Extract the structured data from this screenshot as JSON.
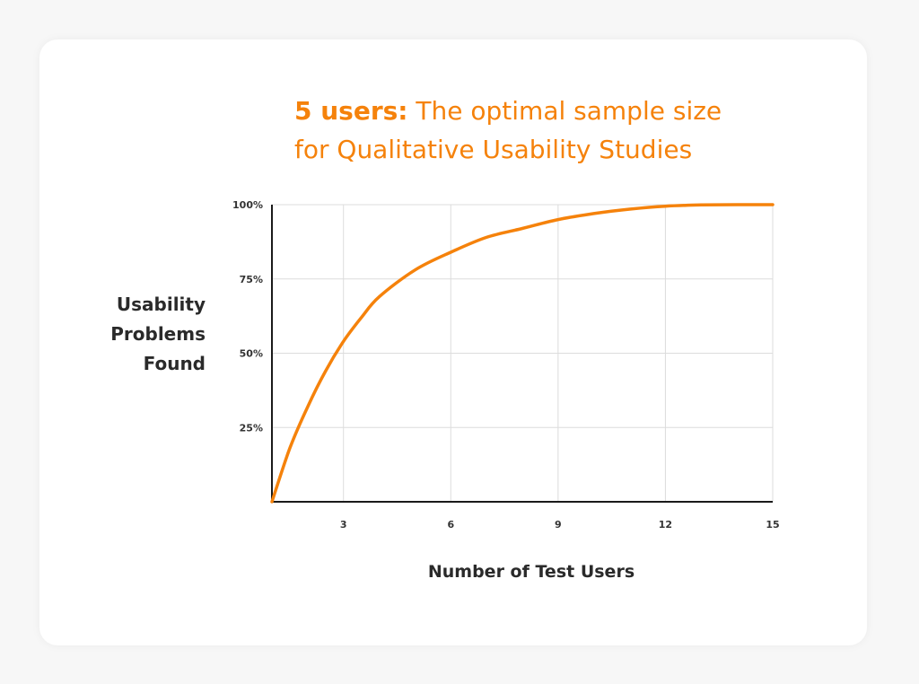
{
  "title": {
    "bold": "5 users:",
    "line1_rest": " The optimal sample size",
    "line2": "for Qualitative Usability Studies"
  },
  "chart_data": {
    "type": "line",
    "title": "5 users: The optimal sample size for Qualitative Usability Studies",
    "xlabel": "Number of Test Users",
    "ylabel": "Usability\nProblems\nFound",
    "xlim": [
      1,
      15
    ],
    "ylim": [
      0,
      100
    ],
    "x_ticks": [
      3,
      6,
      9,
      12,
      15
    ],
    "y_ticks": [
      25,
      50,
      75,
      100
    ],
    "y_tick_labels": [
      "25%",
      "50%",
      "75%",
      "100%"
    ],
    "grid": true,
    "line_color": "#f5820b",
    "series": [
      {
        "x": [
          1,
          1.5,
          2,
          2.5,
          3,
          3.5,
          4,
          5,
          6,
          7,
          8,
          9,
          10,
          11,
          12,
          13,
          14,
          15
        ],
        "values": [
          0,
          18,
          32,
          44,
          54,
          62,
          69,
          78,
          84,
          89,
          92,
          95,
          97,
          98.5,
          99.5,
          99.9,
          100,
          100
        ]
      }
    ]
  },
  "colors": {
    "accent": "#f5820b",
    "text": "#2a2a2a",
    "grid": "#dcdcdc",
    "axis": "#1a1a1a"
  }
}
